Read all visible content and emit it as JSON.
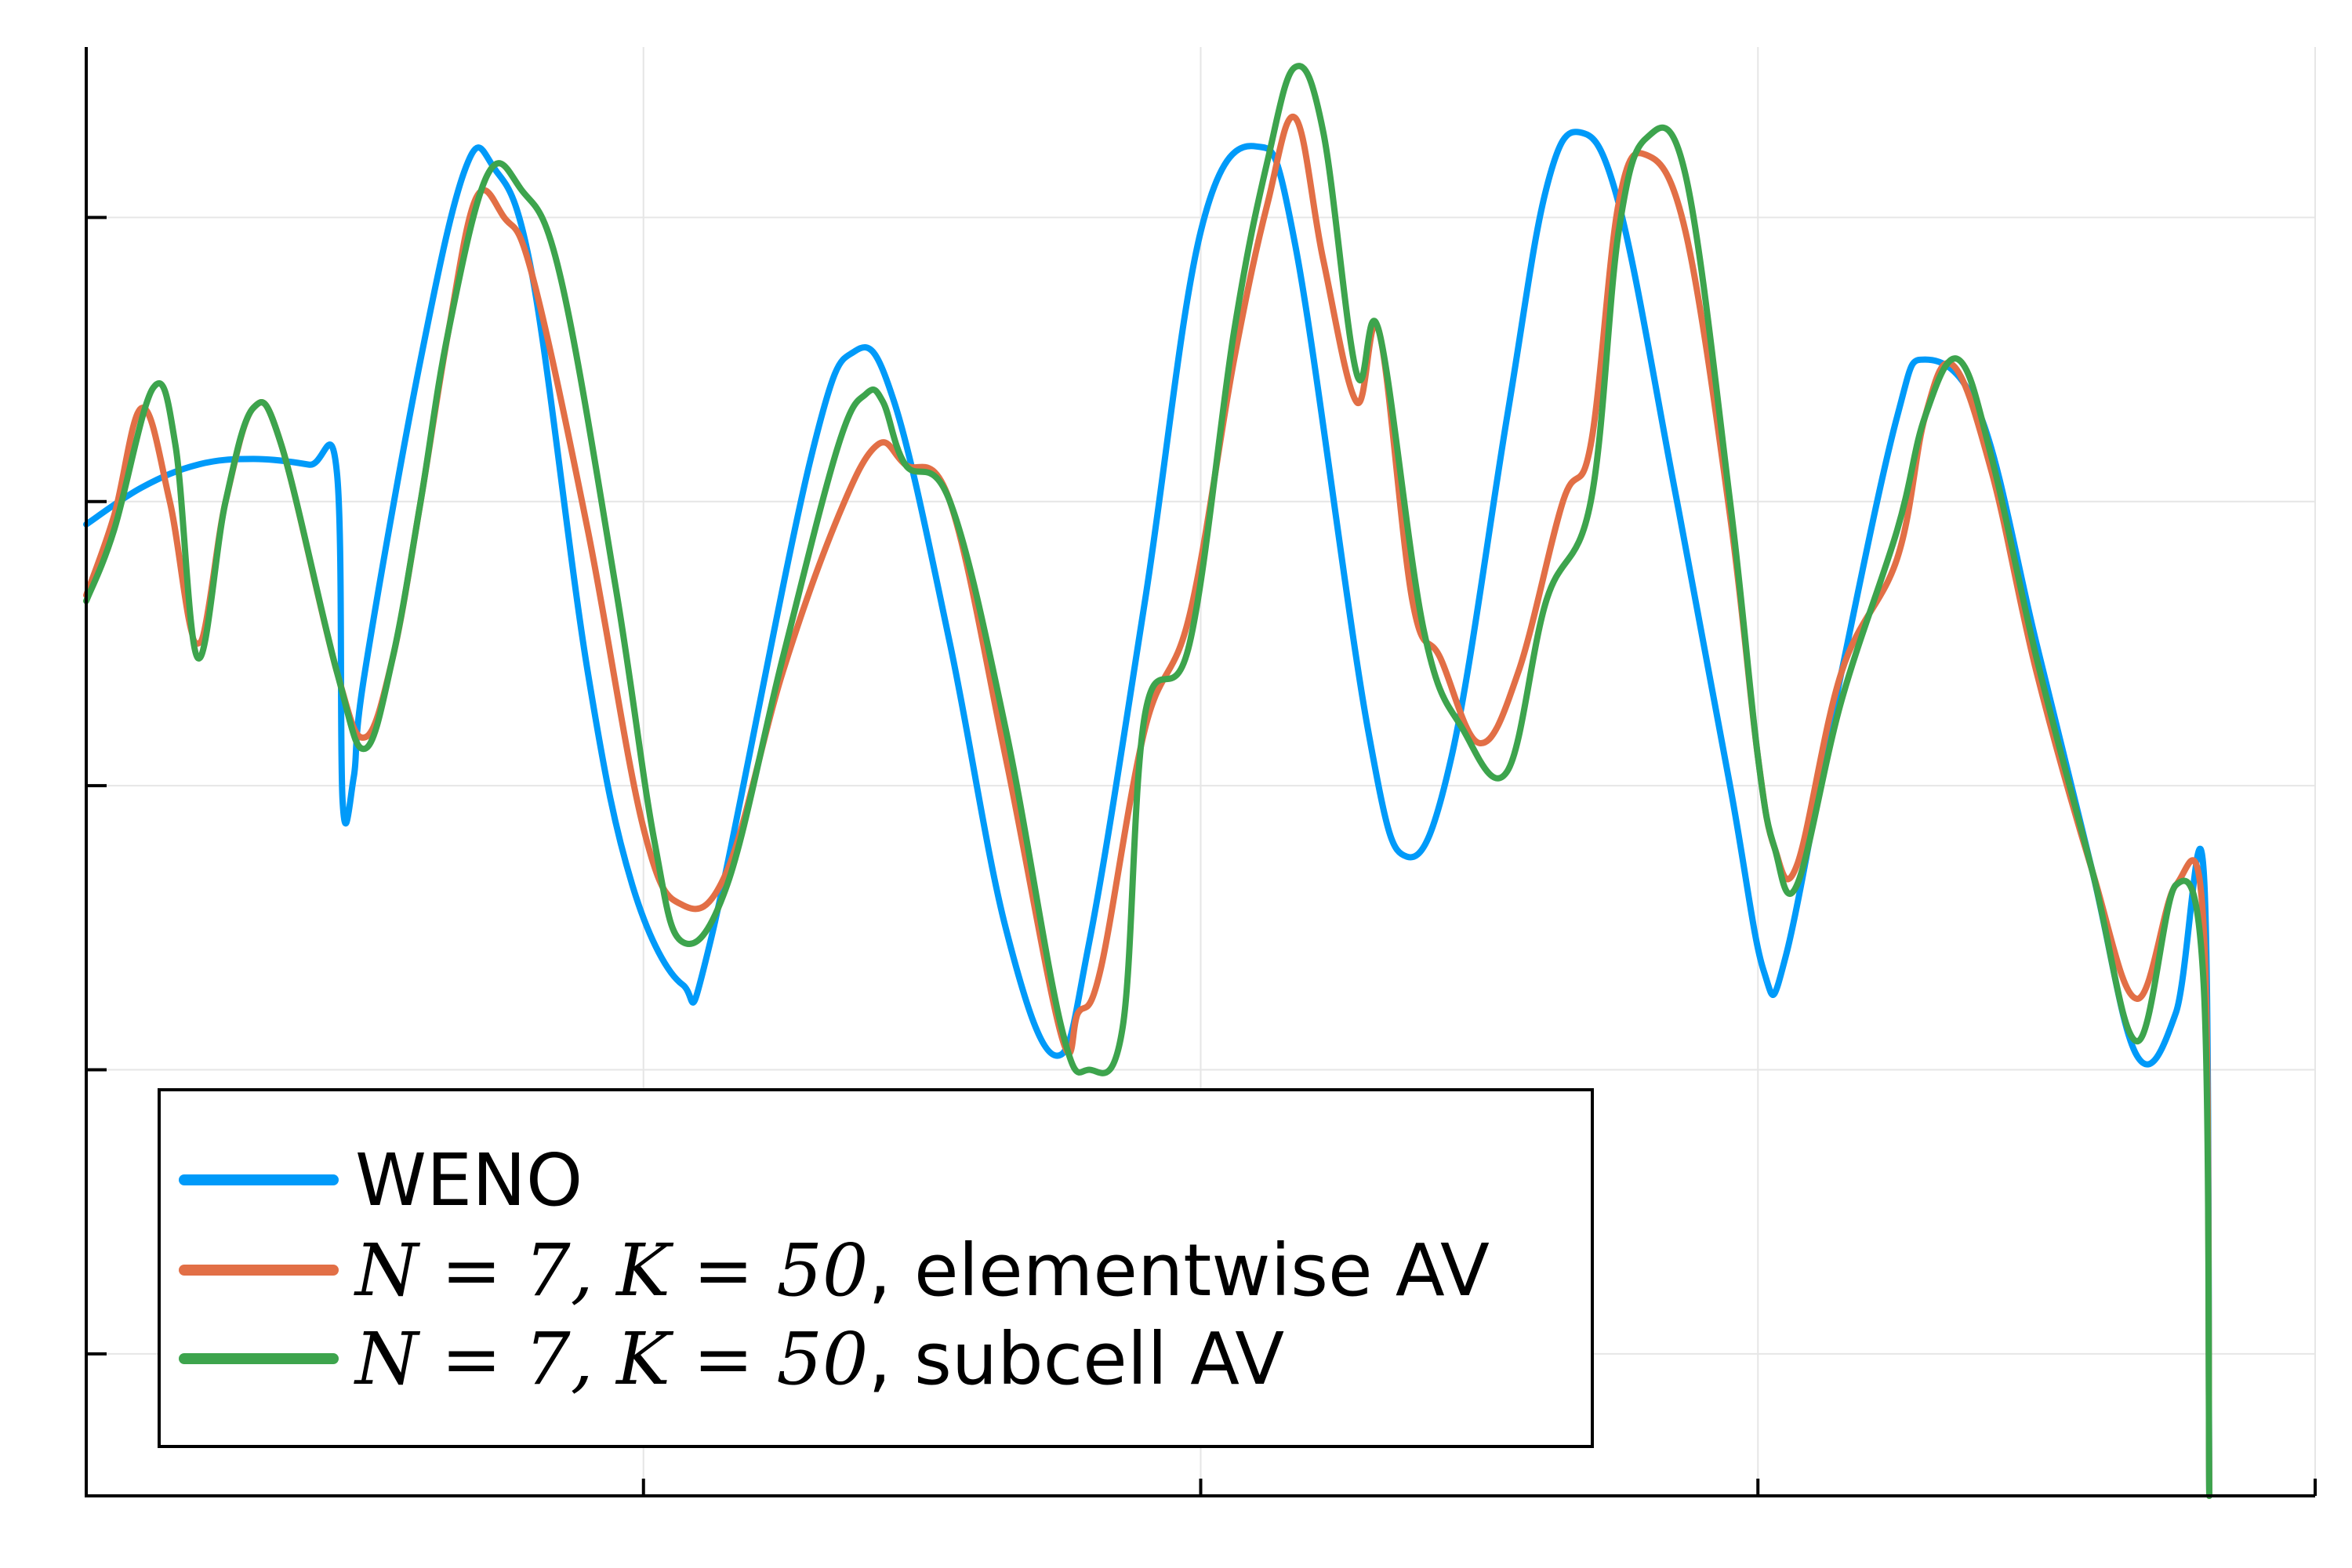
{
  "chart_data": {
    "type": "line",
    "title": "",
    "xlabel": "",
    "ylabel": "",
    "xlim": [
      0,
      4
    ],
    "ylim": [
      -3.5,
      1.6
    ],
    "x_ticks": [
      0,
      1,
      2,
      3,
      4
    ],
    "y_ticks": [
      -3,
      -2,
      -1,
      0,
      1
    ],
    "grid": true,
    "legend_position": "bottom-left",
    "series": [
      {
        "name": "WENO",
        "color": "#009af9",
        "points": [
          [
            0.0,
            -0.08
          ],
          [
            0.1,
            0.05
          ],
          [
            0.2,
            0.13
          ],
          [
            0.3,
            0.15
          ],
          [
            0.4,
            0.13
          ],
          [
            0.45,
            0.1
          ],
          [
            0.46,
            -1.05
          ],
          [
            0.48,
            -0.97
          ],
          [
            0.5,
            -0.6
          ],
          [
            0.6,
            0.5
          ],
          [
            0.68,
            1.17
          ],
          [
            0.73,
            1.18
          ],
          [
            0.8,
            0.8
          ],
          [
            0.9,
            -0.6
          ],
          [
            0.98,
            -1.35
          ],
          [
            1.07,
            -1.7
          ],
          [
            1.12,
            -1.55
          ],
          [
            1.3,
            0.15
          ],
          [
            1.38,
            0.53
          ],
          [
            1.45,
            0.35
          ],
          [
            1.55,
            -0.5
          ],
          [
            1.65,
            -1.5
          ],
          [
            1.74,
            -1.95
          ],
          [
            1.8,
            -1.55
          ],
          [
            1.9,
            -0.35
          ],
          [
            2.0,
            0.95
          ],
          [
            2.1,
            1.25
          ],
          [
            2.17,
            0.9
          ],
          [
            2.3,
            -0.8
          ],
          [
            2.37,
            -1.25
          ],
          [
            2.45,
            -0.9
          ],
          [
            2.55,
            0.3
          ],
          [
            2.62,
            1.1
          ],
          [
            2.68,
            1.3
          ],
          [
            2.75,
            1.05
          ],
          [
            2.85,
            0.05
          ],
          [
            2.95,
            -1.0
          ],
          [
            3.01,
            -1.65
          ],
          [
            3.05,
            -1.6
          ],
          [
            3.15,
            -0.6
          ],
          [
            3.25,
            0.3
          ],
          [
            3.3,
            0.5
          ],
          [
            3.4,
            0.3
          ],
          [
            3.5,
            -0.5
          ],
          [
            3.6,
            -1.3
          ],
          [
            3.68,
            -1.95
          ],
          [
            3.75,
            -1.8
          ],
          [
            3.8,
            -1.3
          ],
          [
            3.81,
            -3.5
          ]
        ]
      },
      {
        "name": "N = 7, K = 50, elementwise AV",
        "color": "#e26f46",
        "points": [
          [
            0.0,
            -0.33
          ],
          [
            0.05,
            -0.05
          ],
          [
            0.1,
            0.33
          ],
          [
            0.15,
            0.0
          ],
          [
            0.2,
            -0.5
          ],
          [
            0.25,
            0.0
          ],
          [
            0.3,
            0.33
          ],
          [
            0.35,
            0.2
          ],
          [
            0.45,
            -0.6
          ],
          [
            0.5,
            -0.83
          ],
          [
            0.55,
            -0.55
          ],
          [
            0.6,
            0.0
          ],
          [
            0.65,
            0.6
          ],
          [
            0.7,
            1.07
          ],
          [
            0.75,
            1.0
          ],
          [
            0.8,
            0.8
          ],
          [
            0.9,
            -0.1
          ],
          [
            1.0,
            -1.15
          ],
          [
            1.07,
            -1.42
          ],
          [
            1.15,
            -1.3
          ],
          [
            1.25,
            -0.6
          ],
          [
            1.35,
            -0.05
          ],
          [
            1.42,
            0.2
          ],
          [
            1.47,
            0.13
          ],
          [
            1.55,
            0.0
          ],
          [
            1.65,
            -0.9
          ],
          [
            1.75,
            -1.88
          ],
          [
            1.78,
            -1.8
          ],
          [
            1.82,
            -1.65
          ],
          [
            1.9,
            -0.8
          ],
          [
            1.98,
            -0.4
          ],
          [
            2.06,
            0.5
          ],
          [
            2.12,
            1.05
          ],
          [
            2.17,
            1.35
          ],
          [
            2.22,
            0.85
          ],
          [
            2.28,
            0.35
          ],
          [
            2.32,
            0.6
          ],
          [
            2.38,
            -0.35
          ],
          [
            2.43,
            -0.55
          ],
          [
            2.5,
            -0.85
          ],
          [
            2.57,
            -0.6
          ],
          [
            2.65,
            0.0
          ],
          [
            2.7,
            0.2
          ],
          [
            2.75,
            1.05
          ],
          [
            2.8,
            1.22
          ],
          [
            2.87,
            0.95
          ],
          [
            2.95,
            -0.05
          ],
          [
            3.0,
            -0.9
          ],
          [
            3.03,
            -1.22
          ],
          [
            3.07,
            -1.28
          ],
          [
            3.15,
            -0.6
          ],
          [
            3.25,
            -0.2
          ],
          [
            3.3,
            0.3
          ],
          [
            3.35,
            0.48
          ],
          [
            3.42,
            0.1
          ],
          [
            3.5,
            -0.6
          ],
          [
            3.6,
            -1.3
          ],
          [
            3.68,
            -1.75
          ],
          [
            3.75,
            -1.35
          ],
          [
            3.8,
            -1.5
          ],
          [
            3.81,
            -3.5
          ]
        ]
      },
      {
        "name": "N = 7, K = 50, subcell AV",
        "color": "#3da44d",
        "points": [
          [
            0.0,
            -0.35
          ],
          [
            0.05,
            -0.1
          ],
          [
            0.12,
            0.4
          ],
          [
            0.16,
            0.2
          ],
          [
            0.2,
            -0.55
          ],
          [
            0.25,
            0.0
          ],
          [
            0.3,
            0.33
          ],
          [
            0.35,
            0.2
          ],
          [
            0.45,
            -0.6
          ],
          [
            0.5,
            -0.87
          ],
          [
            0.55,
            -0.55
          ],
          [
            0.6,
            0.0
          ],
          [
            0.65,
            0.6
          ],
          [
            0.72,
            1.15
          ],
          [
            0.78,
            1.1
          ],
          [
            0.85,
            0.8
          ],
          [
            0.95,
            -0.3
          ],
          [
            1.02,
            -1.2
          ],
          [
            1.07,
            -1.55
          ],
          [
            1.15,
            -1.35
          ],
          [
            1.25,
            -0.55
          ],
          [
            1.35,
            0.2
          ],
          [
            1.4,
            0.38
          ],
          [
            1.43,
            0.35
          ],
          [
            1.47,
            0.13
          ],
          [
            1.55,
            0.0
          ],
          [
            1.65,
            -0.8
          ],
          [
            1.75,
            -1.85
          ],
          [
            1.8,
            -2.0
          ],
          [
            1.86,
            -1.85
          ],
          [
            1.9,
            -0.75
          ],
          [
            1.98,
            -0.5
          ],
          [
            2.06,
            0.6
          ],
          [
            2.12,
            1.2
          ],
          [
            2.17,
            1.53
          ],
          [
            2.22,
            1.3
          ],
          [
            2.28,
            0.45
          ],
          [
            2.32,
            0.6
          ],
          [
            2.4,
            -0.45
          ],
          [
            2.47,
            -0.8
          ],
          [
            2.55,
            -0.95
          ],
          [
            2.62,
            -0.35
          ],
          [
            2.7,
            0.0
          ],
          [
            2.75,
            0.95
          ],
          [
            2.8,
            1.28
          ],
          [
            2.87,
            1.15
          ],
          [
            2.95,
            0.0
          ],
          [
            3.0,
            -0.9
          ],
          [
            3.03,
            -1.22
          ],
          [
            3.07,
            -1.35
          ],
          [
            3.15,
            -0.7
          ],
          [
            3.25,
            -0.1
          ],
          [
            3.3,
            0.3
          ],
          [
            3.36,
            0.5
          ],
          [
            3.42,
            0.15
          ],
          [
            3.5,
            -0.55
          ],
          [
            3.6,
            -1.3
          ],
          [
            3.68,
            -1.9
          ],
          [
            3.75,
            -1.35
          ],
          [
            3.8,
            -1.7
          ],
          [
            3.81,
            -3.5
          ]
        ]
      }
    ]
  },
  "legend": {
    "items": [
      {
        "plain_label": "WENO",
        "math": "",
        "suffix": ""
      },
      {
        "plain_label": "",
        "math": "N = 7, K = 50",
        "suffix": ", elementwise AV"
      },
      {
        "plain_label": "",
        "math": "N = 7, K = 50",
        "suffix": ", subcell AV"
      }
    ]
  }
}
